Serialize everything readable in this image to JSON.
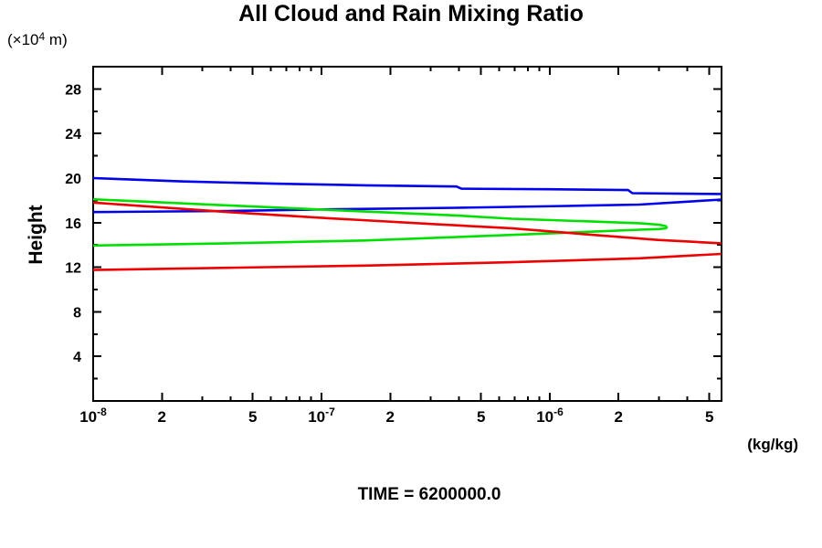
{
  "header": {
    "title": "All Cloud and Rain Mixing Ratio"
  },
  "y_axis": {
    "label": "Height",
    "unit_prefix": "(×10",
    "unit_sup": "4",
    "unit_suffix": " m)",
    "min": 0,
    "max": 30,
    "major_ticks": [
      4,
      8,
      12,
      16,
      20,
      24,
      28
    ],
    "minor_ticks": [
      2,
      6,
      10,
      14,
      18,
      22,
      26
    ]
  },
  "x_axis": {
    "unit": "(kg/kg)",
    "scale": "log",
    "min": 1e-08,
    "max": 5.65e-06,
    "major_ticks": [
      {
        "v": 1e-08,
        "base": "10",
        "exp": "-8"
      },
      {
        "v": 2e-08,
        "label": "2"
      },
      {
        "v": 5e-08,
        "label": "5"
      },
      {
        "v": 1e-07,
        "base": "10",
        "exp": "-7"
      },
      {
        "v": 2e-07,
        "label": "2"
      },
      {
        "v": 5e-07,
        "label": "5"
      },
      {
        "v": 1e-06,
        "base": "10",
        "exp": "-6"
      },
      {
        "v": 2e-06,
        "label": "2"
      },
      {
        "v": 5e-06,
        "label": "5"
      }
    ],
    "minor_ticks": [
      3e-08,
      4e-08,
      6e-08,
      7e-08,
      8e-08,
      9e-08,
      3e-07,
      4e-07,
      6e-07,
      7e-07,
      8e-07,
      9e-07,
      3e-06,
      4e-06
    ]
  },
  "footer": {
    "time_label": "TIME = 6200000.0"
  },
  "colors": {
    "axis": "#000000",
    "blue": "#0000ee",
    "green": "#00e000",
    "red": "#ee0000"
  },
  "chart_data": {
    "type": "line",
    "title": "All Cloud and Rain Mixing Ratio",
    "xlabel": "(kg/kg)",
    "ylabel": "Height",
    "y_units": "x10^4 m",
    "xscale": "log",
    "xlim": [
      1e-08,
      5.65e-06
    ],
    "ylim": [
      0,
      30
    ],
    "grid": false,
    "legend": "none",
    "note": "points are [mixing_ratio_kg_per_kg, height_x10^4_m]; branches are clipped at axis limits",
    "series": [
      {
        "name": "series-blue",
        "color": "#0000ee",
        "branches": [
          [
            [
              1e-08,
              20.0
            ],
            [
              2.5e-08,
              19.7
            ],
            [
              6.2e-08,
              19.5
            ],
            [
              1.55e-07,
              19.35
            ],
            [
              3.9e-07,
              19.25
            ],
            [
              4.1e-07,
              19.05
            ],
            [
              9.8e-07,
              19.0
            ],
            [
              2.2e-06,
              18.93
            ],
            [
              2.3e-06,
              18.65
            ],
            [
              5.65e-06,
              18.57
            ]
          ],
          [
            [
              5.65e-06,
              18.07
            ],
            [
              2.47e-06,
              17.62
            ],
            [
              1.18e-06,
              17.5
            ],
            [
              3.9e-07,
              17.34
            ],
            [
              1.07e-07,
              17.2
            ],
            [
              3.9e-08,
              17.05
            ],
            [
              1e-08,
              16.95
            ]
          ]
        ]
      },
      {
        "name": "series-green",
        "color": "#00e000",
        "branches": [
          [
            [
              1e-08,
              18.1
            ],
            [
              3.9e-08,
              17.55
            ],
            [
              1.55e-07,
              17.0
            ],
            [
              3.9e-07,
              16.65
            ],
            [
              6.8e-07,
              16.35
            ],
            [
              1.55e-06,
              16.1
            ],
            [
              2.47e-06,
              15.95
            ],
            [
              3e-06,
              15.82
            ],
            [
              3.22e-06,
              15.7
            ],
            [
              3.25e-06,
              15.57
            ],
            [
              3.22e-06,
              15.49
            ],
            [
              3e-06,
              15.43
            ],
            [
              2.47e-06,
              15.37
            ],
            [
              1.55e-06,
              15.2
            ],
            [
              6.8e-07,
              14.9
            ],
            [
              1.55e-07,
              14.4
            ],
            [
              3.9e-08,
              14.15
            ],
            [
              1e-08,
              13.95
            ]
          ]
        ]
      },
      {
        "name": "series-red",
        "color": "#ee0000",
        "branches": [
          [
            [
              1e-08,
              17.8
            ],
            [
              3.9e-08,
              16.95
            ],
            [
              1.07e-07,
              16.4
            ],
            [
              3.2e-07,
              15.85
            ],
            [
              6.8e-07,
              15.5
            ],
            [
              1.55e-06,
              14.9
            ],
            [
              2.97e-06,
              14.45
            ],
            [
              5.65e-06,
              14.15
            ]
          ],
          [
            [
              5.65e-06,
              13.2
            ],
            [
              2.47e-06,
              12.8
            ],
            [
              6.8e-07,
              12.45
            ],
            [
              1.55e-07,
              12.15
            ],
            [
              3.9e-08,
              11.95
            ],
            [
              1e-08,
              11.75
            ]
          ]
        ]
      }
    ]
  }
}
